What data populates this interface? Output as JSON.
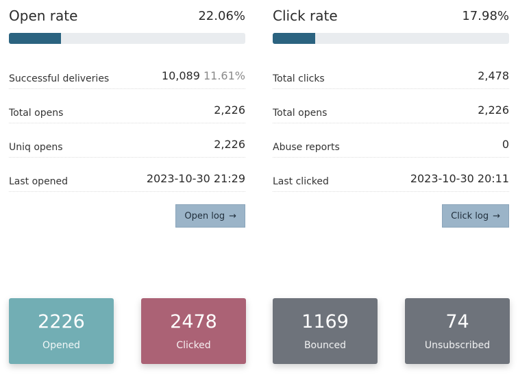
{
  "open_panel": {
    "title": "Open rate",
    "rate": "22.06%",
    "rate_fraction": 0.2206,
    "rows": [
      {
        "label": "Successful deliveries",
        "value": "10,089",
        "pct": "11.61%"
      },
      {
        "label": "Total opens",
        "value": "2,226"
      },
      {
        "label": "Uniq opens",
        "value": "2,226"
      },
      {
        "label": "Last opened",
        "value": "2023-10-30 21:29"
      }
    ],
    "button_label": "Open log",
    "button_icon": "arrow-right-icon"
  },
  "click_panel": {
    "title": "Click rate",
    "rate": "17.98%",
    "rate_fraction": 0.1798,
    "rows": [
      {
        "label": "Total clicks",
        "value": "2,478"
      },
      {
        "label": "Total opens",
        "value": "2,226"
      },
      {
        "label": "Abuse reports",
        "value": "0"
      },
      {
        "label": "Last clicked",
        "value": "2023-10-30 20:11"
      }
    ],
    "button_label": "Click log",
    "button_icon": "arrow-right-icon"
  },
  "colors": {
    "bar_fill": "#2b6380",
    "bar_track": "#e9ecef",
    "button_bg": "#9bb4c8",
    "opened": "#72aeb4",
    "clicked": "#ab6275",
    "bounced": "#6e737b",
    "unsubscribed": "#6e737b"
  },
  "cards": [
    {
      "number": "2226",
      "label": "Opened"
    },
    {
      "number": "2478",
      "label": "Clicked"
    },
    {
      "number": "1169",
      "label": "Bounced"
    },
    {
      "number": "74",
      "label": "Unsubscribed"
    }
  ]
}
